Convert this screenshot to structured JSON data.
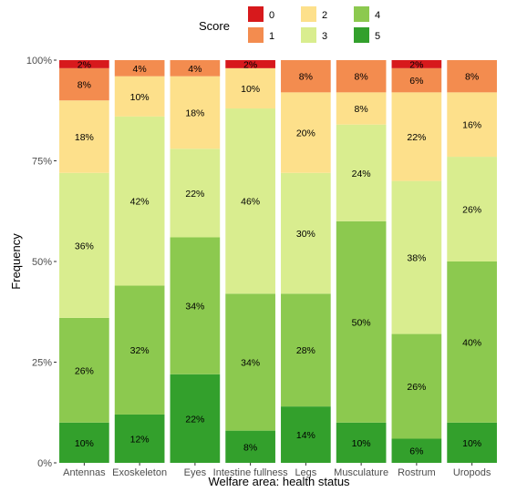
{
  "chart_data": {
    "type": "bar",
    "stacked": true,
    "percent": true,
    "categories": [
      "Antennas",
      "Exoskeleton",
      "Eyes",
      "Intestine fullness",
      "Legs",
      "Musculature",
      "Rostrum",
      "Uropods"
    ],
    "series": [
      {
        "name": "5",
        "color": "#33a02c",
        "values": [
          10,
          12,
          22,
          8,
          14,
          10,
          6,
          10
        ]
      },
      {
        "name": "4",
        "color": "#8cc94f",
        "values": [
          26,
          32,
          34,
          34,
          28,
          50,
          26,
          40
        ]
      },
      {
        "name": "3",
        "color": "#d9ed8f",
        "values": [
          36,
          42,
          22,
          46,
          30,
          24,
          38,
          26
        ]
      },
      {
        "name": "2",
        "color": "#fde08b",
        "values": [
          18,
          10,
          18,
          10,
          20,
          8,
          22,
          16
        ]
      },
      {
        "name": "1",
        "color": "#f38c4f",
        "values": [
          8,
          4,
          4,
          0,
          8,
          8,
          6,
          8
        ]
      },
      {
        "name": "0",
        "color": "#d7191c",
        "values": [
          2,
          0,
          0,
          2,
          0,
          0,
          2,
          0
        ]
      }
    ],
    "labels": [
      [
        "10%",
        "26%",
        "36%",
        "18%",
        "8%",
        "2%"
      ],
      [
        "12%",
        "32%",
        "42%",
        "10%",
        "4%",
        ""
      ],
      [
        "22%",
        "34%",
        "22%",
        "18%",
        "4%",
        ""
      ],
      [
        "8%",
        "34%",
        "46%",
        "10%",
        "",
        "2%"
      ],
      [
        "14%",
        "28%",
        "30%",
        "20%",
        "8%",
        ""
      ],
      [
        "10%",
        "50%",
        "24%",
        "8%",
        "8%",
        ""
      ],
      [
        "6%",
        "26%",
        "38%",
        "22%",
        "6%",
        "2%"
      ],
      [
        "10%",
        "40%",
        "26%",
        "16%",
        "8%",
        ""
      ]
    ],
    "xlabel": "Welfare area: health status",
    "ylabel": "Frequency",
    "yticks": [
      "0%",
      "25%",
      "50%",
      "75%",
      "100%"
    ],
    "ylim": [
      0,
      100
    ],
    "legend": {
      "title": "Score",
      "position": "top",
      "entries": [
        "0",
        "1",
        "2",
        "3",
        "4",
        "5"
      ]
    },
    "grid": false
  }
}
